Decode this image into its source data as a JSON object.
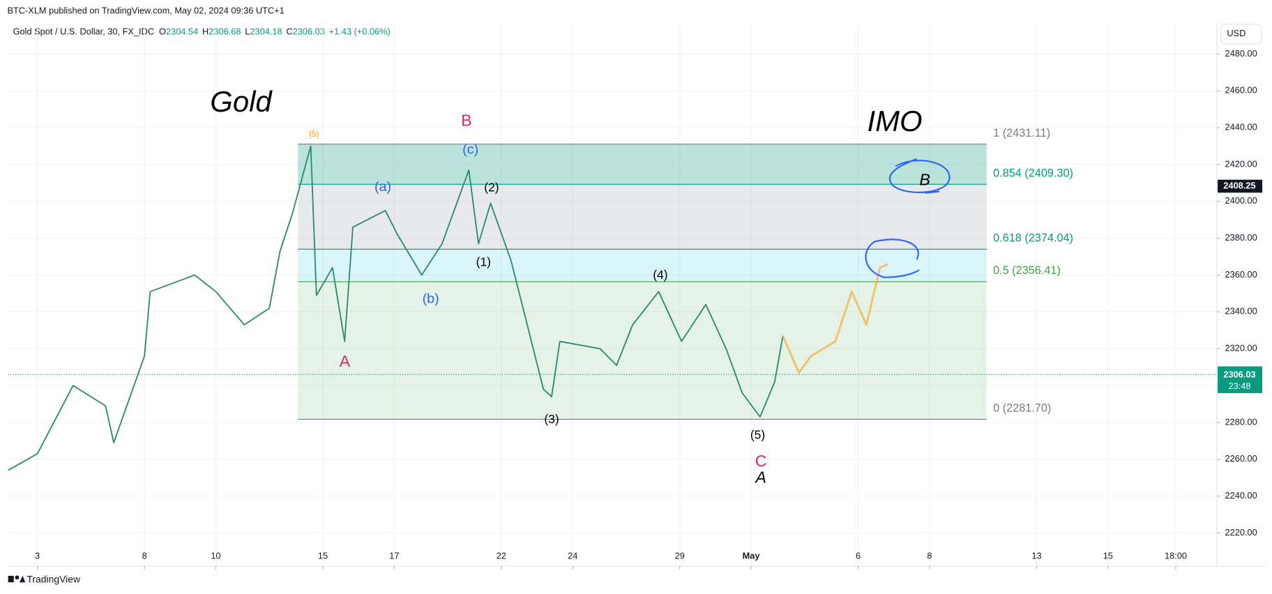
{
  "header": {
    "published": "BTC-XLM published on TradingView.com, May 02, 2024 09:36 UTC+1",
    "symbol": "Gold Spot / U.S. Dollar, 30, FX_IDC",
    "ohlc": [
      {
        "key": "O",
        "value": 2304.54
      },
      {
        "key": "H",
        "value": 2306.68
      },
      {
        "key": "L",
        "value": 2304.18
      },
      {
        "key": "C",
        "value": 2306.03
      }
    ],
    "change": "+1.43 (+0.06%)",
    "currency": "USD"
  },
  "footer": "TradingView",
  "chart_data": {
    "type": "line",
    "xlim": [
      -0.82,
      33.05
    ],
    "ylim": [
      2202,
      2497
    ],
    "grid": true,
    "xticks": [
      {
        "value": 0,
        "label": "3"
      },
      {
        "value": 3,
        "label": "8"
      },
      {
        "value": 5,
        "label": "10"
      },
      {
        "value": 8,
        "label": "15"
      },
      {
        "value": 10,
        "label": "17"
      },
      {
        "value": 13,
        "label": "22"
      },
      {
        "value": 15,
        "label": "24"
      },
      {
        "value": 18,
        "label": "29"
      },
      {
        "value": 20,
        "label": "May"
      },
      {
        "value": 23,
        "label": "6"
      },
      {
        "value": 25,
        "label": "8"
      },
      {
        "value": 28,
        "label": "13"
      },
      {
        "value": 30,
        "label": "15"
      },
      {
        "value": 31.9,
        "label": "18:00"
      }
    ],
    "yticks": [
      {
        "value": 2220,
        "label": "2220.00"
      },
      {
        "value": 2240,
        "label": "2240.00"
      },
      {
        "value": 2260,
        "label": "2260.00"
      },
      {
        "value": 2280,
        "label": "2280.00"
      },
      {
        "value": 2300,
        "label": "2300.00"
      },
      {
        "value": 2320,
        "label": "2320.00"
      },
      {
        "value": 2340,
        "label": "2340.00"
      },
      {
        "value": 2360,
        "label": "2360.00"
      },
      {
        "value": 2380,
        "label": "2380.00"
      },
      {
        "value": 2400,
        "label": "2400.00"
      },
      {
        "value": 2420,
        "label": "2420.00"
      },
      {
        "value": 2440,
        "label": "2440.00"
      },
      {
        "value": 2460,
        "label": "2460.00"
      },
      {
        "value": 2480,
        "label": "2480.00"
      }
    ],
    "series": [
      {
        "color": "#2e8b72",
        "x": [
          -0.82,
          0,
          1,
          1.91,
          2.14,
          3,
          3.16,
          4.41,
          5,
          5.8,
          6.5,
          6.8,
          7.14,
          7.66,
          7.82,
          8.27,
          8.61,
          8.84,
          9.75,
          10.09,
          10.77,
          11.34,
          12.09,
          12.36,
          12.7,
          13.27,
          13.61,
          14.18,
          14.41,
          14.64,
          15.77,
          16.23,
          16.68,
          17.41,
          18.05,
          18.73,
          19.3,
          19.75,
          20.25,
          20.66,
          20.89
        ],
        "values": [
          2254,
          2263,
          2300,
          2289,
          2269,
          2316,
          2351,
          2360,
          2351,
          2333,
          2342,
          2373,
          2393,
          2430,
          2349,
          2364,
          2324,
          2386,
          2395,
          2382,
          2360,
          2377,
          2417,
          2377,
          2399,
          2368,
          2342,
          2298,
          2294,
          2324,
          2320,
          2311,
          2333,
          2351,
          2324,
          2344,
          2320,
          2296,
          2283,
          2302,
          2327
        ]
      },
      {
        "color": "#f5b041",
        "x": [
          20.89,
          21.34,
          21.68,
          22.36,
          22.82,
          23.23,
          23.61,
          23.84
        ],
        "values": [
          2327,
          2307,
          2316,
          2324,
          2351,
          2333,
          2364,
          2366
        ]
      }
    ],
    "fib": {
      "x": [
        7.3,
        26.6
      ],
      "levels": [
        {
          "value": 2431.11,
          "label": "1 (2431.11)",
          "color": "#787b86"
        },
        {
          "value": 2409.3,
          "label": "0.854 (2409.30)",
          "color": "#089981"
        },
        {
          "value": 2374.04,
          "label": "0.618 (2374.04)",
          "color": "#089981"
        },
        {
          "value": 2356.41,
          "label": "0.5 (2356.41)",
          "color": "#43a047"
        },
        {
          "value": 2281.7,
          "label": "0 (2281.70)",
          "color": "#787b86"
        }
      ],
      "fills": [
        "rgba(8,153,129,0.28)",
        "rgba(120,123,134,0.17)",
        "rgba(0,188,212,0.15)",
        "rgba(76,175,80,0.15)"
      ]
    },
    "last_price": {
      "value": 2306.03,
      "countdown": "23:48",
      "color": "#089981"
    },
    "marker_price": 2408.25,
    "annotations": [
      "Gold",
      "IMO",
      "(5)",
      "B",
      "(c)",
      "(a)",
      "(2)",
      "(1)",
      "(b)",
      "A",
      "(3)",
      "(4)",
      "(5)",
      "C",
      "A",
      "B"
    ]
  }
}
